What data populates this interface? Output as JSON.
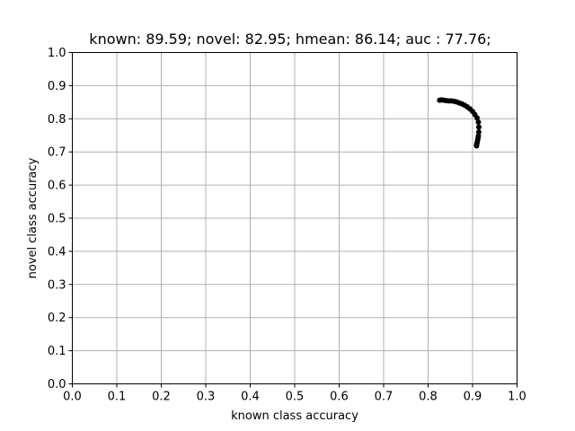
{
  "chart_data": {
    "type": "line",
    "title": "known: 89.59; novel: 82.95; hmean: 86.14; auc  : 77.76;",
    "xlabel": "known class accuracy",
    "ylabel": "novel class accuracy",
    "xlim": [
      0.0,
      1.0
    ],
    "ylim": [
      0.0,
      1.0
    ],
    "xticks": [
      "0.0",
      "0.1",
      "0.2",
      "0.3",
      "0.4",
      "0.5",
      "0.6",
      "0.7",
      "0.8",
      "0.9",
      "1.0"
    ],
    "yticks": [
      "0.0",
      "0.1",
      "0.2",
      "0.3",
      "0.4",
      "0.5",
      "0.6",
      "0.7",
      "0.8",
      "0.9",
      "1.0"
    ],
    "grid": true,
    "series": [
      {
        "color": "#000000",
        "marker": "circle",
        "x": [
          0.826,
          0.83,
          0.835,
          0.84,
          0.846,
          0.852,
          0.858,
          0.864,
          0.87,
          0.876,
          0.882,
          0.888,
          0.894,
          0.9,
          0.905,
          0.91,
          0.913,
          0.914,
          0.914,
          0.913,
          0.912,
          0.911,
          0.91,
          0.909,
          0.909
        ],
        "y": [
          0.856,
          0.857,
          0.856,
          0.855,
          0.854,
          0.854,
          0.853,
          0.851,
          0.848,
          0.845,
          0.841,
          0.836,
          0.83,
          0.822,
          0.813,
          0.803,
          0.79,
          0.775,
          0.76,
          0.748,
          0.74,
          0.733,
          0.727,
          0.722,
          0.718
        ]
      }
    ]
  }
}
